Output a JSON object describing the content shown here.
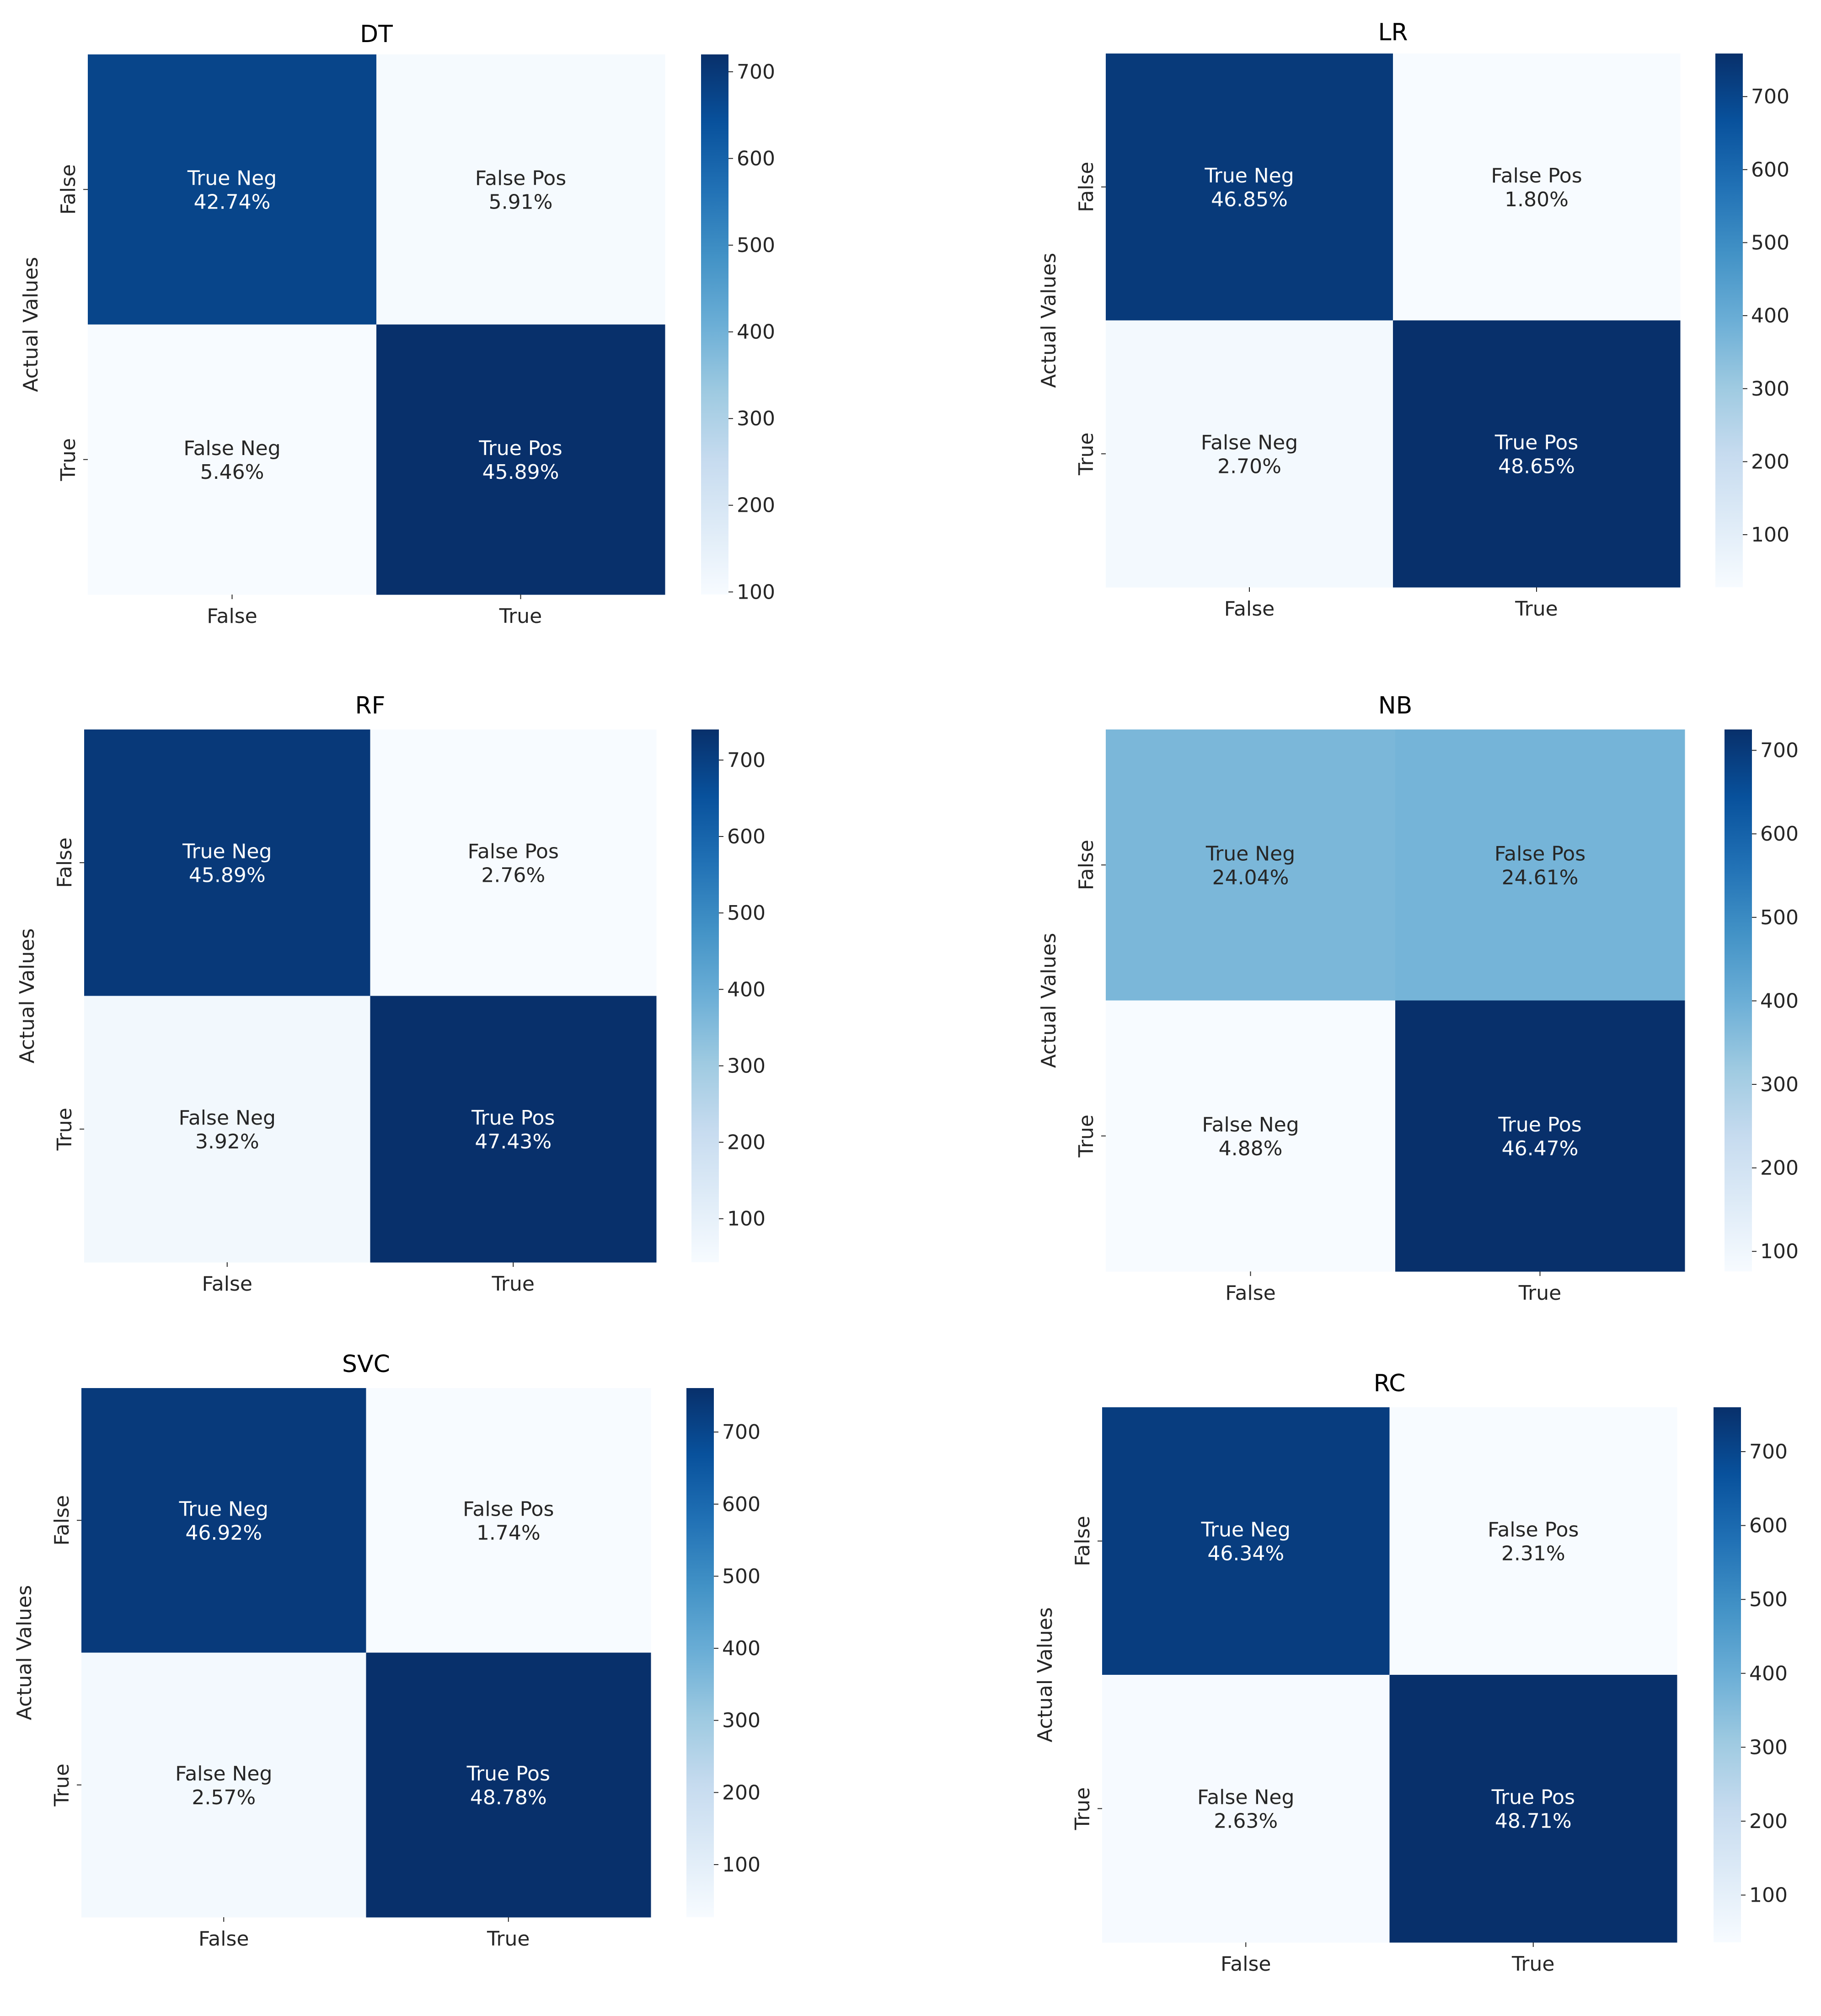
{
  "chart_data": [
    {
      "type": "heatmap",
      "title": "DT",
      "ylabel": "Actual Values",
      "xlabel": "",
      "x_categories": [
        "False",
        "True"
      ],
      "y_categories": [
        "False",
        "True"
      ],
      "cells": [
        [
          {
            "label": "True Neg",
            "percent": "42.74%",
            "value": 42.74
          },
          {
            "label": "False Pos",
            "percent": "5.91%",
            "value": 5.91
          }
        ],
        [
          {
            "label": "False Neg",
            "percent": "5.46%",
            "value": 5.46
          },
          {
            "label": "True Pos",
            "percent": "45.89%",
            "value": 45.89
          }
        ]
      ],
      "colorbar": {
        "range": [
          97,
          720
        ],
        "ticks": [
          100,
          200,
          300,
          400,
          500,
          600,
          700
        ]
      }
    },
    {
      "type": "heatmap",
      "title": "LR",
      "ylabel": "Actual Values",
      "xlabel": "",
      "x_categories": [
        "False",
        "True"
      ],
      "y_categories": [
        "False",
        "True"
      ],
      "cells": [
        [
          {
            "label": "True Neg",
            "percent": "46.85%",
            "value": 46.85
          },
          {
            "label": "False Pos",
            "percent": "1.80%",
            "value": 1.8
          }
        ],
        [
          {
            "label": "False Neg",
            "percent": "2.70%",
            "value": 2.7
          },
          {
            "label": "True Pos",
            "percent": "48.65%",
            "value": 48.65
          }
        ]
      ],
      "colorbar": {
        "range": [
          28,
          759
        ],
        "ticks": [
          100,
          200,
          300,
          400,
          500,
          600,
          700
        ]
      }
    },
    {
      "type": "heatmap",
      "title": "RF",
      "ylabel": "Actual Values",
      "xlabel": "",
      "x_categories": [
        "False",
        "True"
      ],
      "y_categories": [
        "False",
        "True"
      ],
      "cells": [
        [
          {
            "label": "True Neg",
            "percent": "45.89%",
            "value": 45.89
          },
          {
            "label": "False Pos",
            "percent": "2.76%",
            "value": 2.76
          }
        ],
        [
          {
            "label": "False Neg",
            "percent": "3.92%",
            "value": 3.92
          },
          {
            "label": "True Pos",
            "percent": "47.43%",
            "value": 47.43
          }
        ]
      ],
      "colorbar": {
        "range": [
          43,
          740
        ],
        "ticks": [
          100,
          200,
          300,
          400,
          500,
          600,
          700
        ]
      }
    },
    {
      "type": "heatmap",
      "title": "NB",
      "ylabel": "Actual Values",
      "xlabel": "",
      "x_categories": [
        "False",
        "True"
      ],
      "y_categories": [
        "False",
        "True"
      ],
      "cells": [
        [
          {
            "label": "True Neg",
            "percent": "24.04%",
            "value": 24.04
          },
          {
            "label": "False Pos",
            "percent": "24.61%",
            "value": 24.61
          }
        ],
        [
          {
            "label": "False Neg",
            "percent": "4.88%",
            "value": 4.88
          },
          {
            "label": "True Pos",
            "percent": "46.47%",
            "value": 46.47
          }
        ]
      ],
      "colorbar": {
        "range": [
          76,
          725
        ],
        "ticks": [
          100,
          200,
          300,
          400,
          500,
          600,
          700
        ]
      }
    },
    {
      "type": "heatmap",
      "title": "SVC",
      "ylabel": "Actual Values",
      "xlabel": "",
      "x_categories": [
        "False",
        "True"
      ],
      "y_categories": [
        "False",
        "True"
      ],
      "cells": [
        [
          {
            "label": "True Neg",
            "percent": "46.92%",
            "value": 46.92
          },
          {
            "label": "False Pos",
            "percent": "1.74%",
            "value": 1.74
          }
        ],
        [
          {
            "label": "False Neg",
            "percent": "2.57%",
            "value": 2.57
          },
          {
            "label": "True Pos",
            "percent": "48.78%",
            "value": 48.78
          }
        ]
      ],
      "colorbar": {
        "range": [
          27,
          761
        ],
        "ticks": [
          100,
          200,
          300,
          400,
          500,
          600,
          700
        ]
      }
    },
    {
      "type": "heatmap",
      "title": "RC",
      "ylabel": "Actual Values",
      "xlabel": "",
      "x_categories": [
        "False",
        "True"
      ],
      "y_categories": [
        "False",
        "True"
      ],
      "cells": [
        [
          {
            "label": "True Neg",
            "percent": "46.34%",
            "value": 46.34
          },
          {
            "label": "False Pos",
            "percent": "2.31%",
            "value": 2.31
          }
        ],
        [
          {
            "label": "False Neg",
            "percent": "2.63%",
            "value": 2.63
          },
          {
            "label": "True Pos",
            "percent": "48.71%",
            "value": 48.71
          }
        ]
      ],
      "colorbar": {
        "range": [
          36,
          760
        ],
        "ticks": [
          100,
          200,
          300,
          400,
          500,
          600,
          700
        ]
      }
    }
  ],
  "colors": {
    "colormap": "Blues",
    "stops": [
      "#f7fbff",
      "#deebf7",
      "#c6dbef",
      "#9ecae1",
      "#6baed6",
      "#4292c6",
      "#2171b5",
      "#08519c",
      "#08306b"
    ]
  }
}
